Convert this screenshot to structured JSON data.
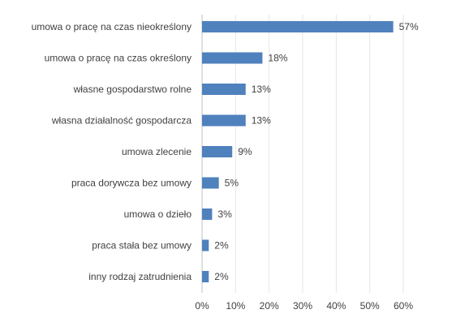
{
  "chart_data": {
    "type": "bar",
    "orientation": "horizontal",
    "categories": [
      "umowa o pracę na czas nieokreślony",
      "umowa o pracę na czas określony",
      "własne gospodarstwo rolne",
      "własna działalność gospodarcza",
      "umowa zlecenie",
      "praca dorywcza bez umowy",
      "umowa o dzieło",
      "praca stała bez umowy",
      "inny rodzaj zatrudnienia"
    ],
    "values": [
      57,
      18,
      13,
      13,
      9,
      5,
      3,
      2,
      2
    ],
    "value_labels": [
      "57%",
      "18%",
      "13%",
      "13%",
      "9%",
      "5%",
      "3%",
      "2%",
      "2%"
    ],
    "x_ticks": [
      0,
      10,
      20,
      30,
      40,
      50,
      60
    ],
    "x_tick_labels": [
      "0%",
      "10%",
      "20%",
      "30%",
      "40%",
      "50%",
      "60%"
    ],
    "xlim": [
      0,
      60
    ],
    "grid": true,
    "bar_color": "#4f81bd",
    "title": "",
    "xlabel": "",
    "ylabel": ""
  }
}
